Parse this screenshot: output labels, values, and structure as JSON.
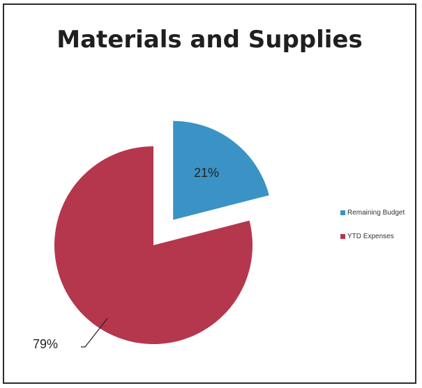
{
  "chart_data": {
    "type": "pie",
    "title": "Materials and Supplies",
    "categories": [
      "Remaining Budget",
      "YTD Expenses"
    ],
    "values": [
      21,
      79
    ],
    "data_labels": [
      "21%",
      "79%"
    ],
    "colors": [
      "#3a93c4",
      "#b5374d"
    ],
    "exploded": "Remaining Budget",
    "legend_position": "right"
  }
}
